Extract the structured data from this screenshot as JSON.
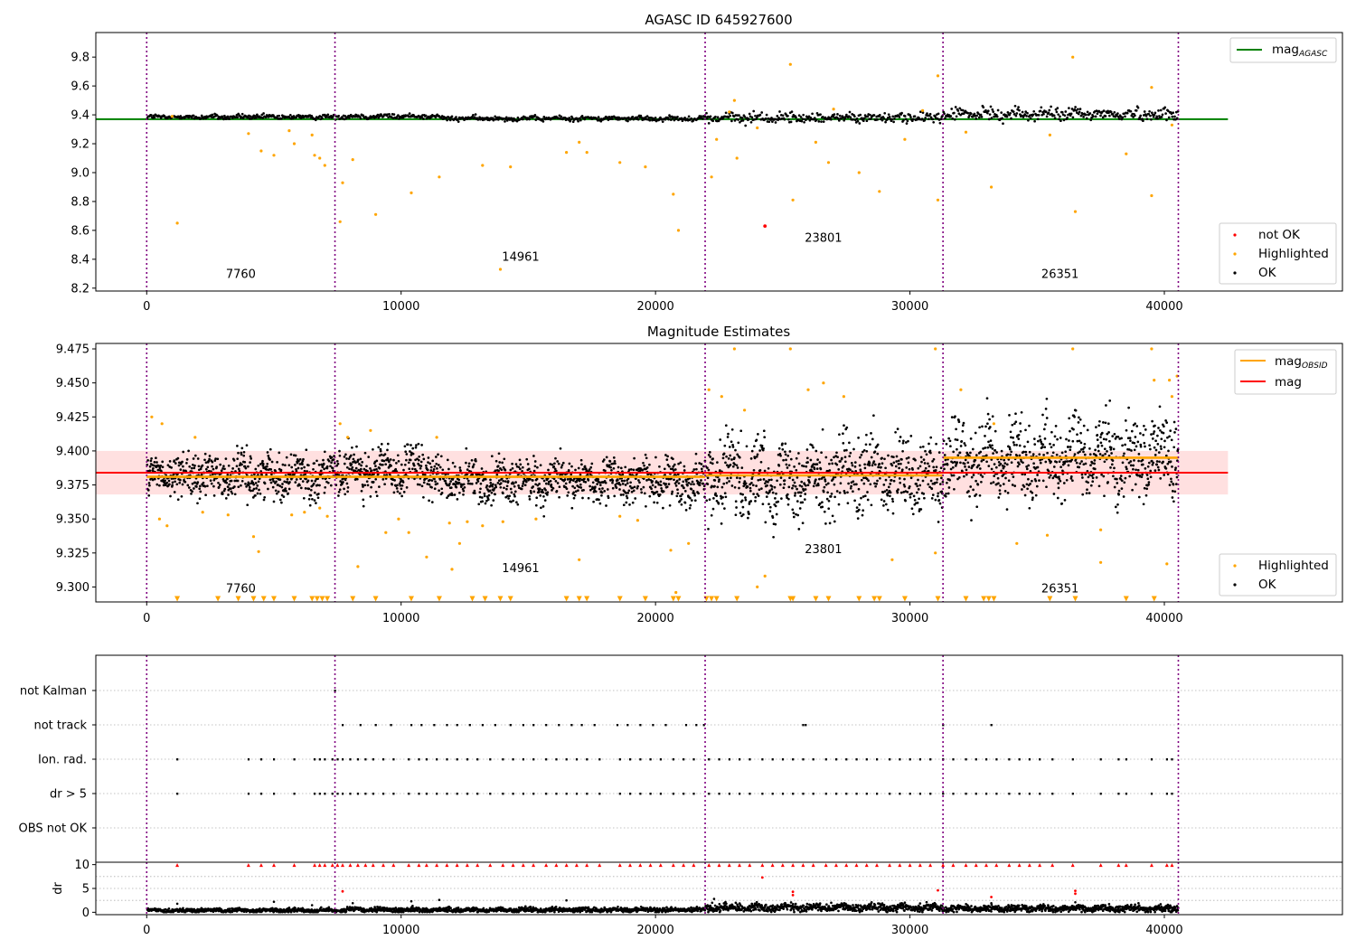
{
  "chart_data": [
    {
      "type": "scatter",
      "title": "AGASC ID 645927600",
      "xlim": [
        -2000,
        47000
      ],
      "ylim": [
        8.18,
        9.97
      ],
      "xticks": [
        0,
        10000,
        20000,
        30000,
        40000
      ],
      "yticks": [
        8.2,
        8.4,
        8.6,
        8.8,
        9.0,
        9.2,
        9.4,
        9.6,
        9.8
      ],
      "ytick_labels": [
        "8.2",
        "8.4",
        "8.6",
        "8.8",
        "9.0",
        "9.2",
        "9.4",
        "9.6",
        "9.8"
      ],
      "vlines": [
        0,
        7400,
        21950,
        31300,
        40550
      ],
      "reference_lines": [
        {
          "name": "mag_AGASC",
          "label_main": "mag",
          "label_sub": "AGASC",
          "y": 9.37,
          "x": [
            -2000,
            42500
          ],
          "color": "#008000"
        }
      ],
      "obsid_labels": [
        {
          "text": "7760",
          "x": 3700,
          "y": 8.27
        },
        {
          "text": "14961",
          "x": 14700,
          "y": 8.39
        },
        {
          "text": "23801",
          "x": 26600,
          "y": 8.52
        },
        {
          "text": "26351",
          "x": 35900,
          "y": 8.27
        }
      ],
      "ok_segments": [
        {
          "x": [
            0,
            7400
          ],
          "center": 9.385,
          "spread": 0.012
        },
        {
          "x": [
            7400,
            11500
          ],
          "center": 9.39,
          "spread": 0.012
        },
        {
          "x": [
            11500,
            21950
          ],
          "center": 9.375,
          "spread": 0.012
        },
        {
          "x": [
            21950,
            31300
          ],
          "center": 9.38,
          "spread": 0.025
        },
        {
          "x": [
            31300,
            40550
          ],
          "center": 9.405,
          "spread": 0.03
        }
      ],
      "highlighted": [
        [
          1200,
          8.65
        ],
        [
          4000,
          9.27
        ],
        [
          4500,
          9.15
        ],
        [
          5000,
          9.12
        ],
        [
          5800,
          9.2
        ],
        [
          5600,
          9.29
        ],
        [
          6500,
          9.26
        ],
        [
          6800,
          9.1
        ],
        [
          6600,
          9.12
        ],
        [
          7000,
          9.05
        ],
        [
          7600,
          8.66
        ],
        [
          7700,
          8.93
        ],
        [
          8100,
          9.09
        ],
        [
          9000,
          8.71
        ],
        [
          10400,
          8.86
        ],
        [
          11500,
          8.97
        ],
        [
          13200,
          9.05
        ],
        [
          13900,
          8.33
        ],
        [
          14300,
          9.04
        ],
        [
          16500,
          9.14
        ],
        [
          17000,
          9.21
        ],
        [
          17300,
          9.14
        ],
        [
          18600,
          9.07
        ],
        [
          19600,
          9.04
        ],
        [
          20700,
          8.85
        ],
        [
          20900,
          8.6
        ],
        [
          22200,
          8.97
        ],
        [
          22400,
          9.23
        ],
        [
          23200,
          9.1
        ],
        [
          23100,
          9.5
        ],
        [
          25300,
          9.75
        ],
        [
          25400,
          8.81
        ],
        [
          26300,
          9.21
        ],
        [
          26800,
          9.07
        ],
        [
          28000,
          9.0
        ],
        [
          28800,
          8.87
        ],
        [
          29800,
          9.23
        ],
        [
          31100,
          8.81
        ],
        [
          31100,
          9.67
        ],
        [
          32200,
          9.28
        ],
        [
          33200,
          8.9
        ],
        [
          35500,
          9.26
        ],
        [
          36400,
          9.8
        ],
        [
          36500,
          8.73
        ],
        [
          38500,
          9.13
        ],
        [
          39500,
          8.84
        ],
        [
          39500,
          9.59
        ],
        [
          40300,
          9.33
        ],
        [
          1000,
          9.39
        ],
        [
          22900,
          9.42
        ],
        [
          24000,
          9.31
        ],
        [
          27000,
          9.44
        ],
        [
          30500,
          9.43
        ]
      ],
      "not_ok": [
        [
          24300,
          8.63
        ]
      ],
      "legend_top": [
        "mag_AGASC"
      ],
      "legend_bottom": [
        "not OK",
        "Highlighted",
        "OK"
      ]
    },
    {
      "type": "scatter",
      "title": "Magnitude Estimates",
      "xlim": [
        -2000,
        47000
      ],
      "ylim": [
        9.289,
        9.479
      ],
      "xticks": [
        0,
        10000,
        20000,
        30000,
        40000
      ],
      "yticks": [
        9.3,
        9.325,
        9.35,
        9.375,
        9.4,
        9.425,
        9.45,
        9.475
      ],
      "ytick_labels": [
        "9.300",
        "9.325",
        "9.350",
        "9.375",
        "9.400",
        "9.425",
        "9.450",
        "9.475"
      ],
      "vlines": [
        0,
        7400,
        21950,
        31300,
        40550
      ],
      "mag": {
        "y": 9.384,
        "band": [
          9.368,
          9.4
        ],
        "x": [
          -2000,
          42500
        ],
        "color": "#ff0000"
      },
      "mag_obsid": [
        {
          "x": [
            0,
            7400
          ],
          "y": 9.381
        },
        {
          "x": [
            7400,
            21950
          ],
          "y": 9.381
        },
        {
          "x": [
            21950,
            31300
          ],
          "y": 9.382
        },
        {
          "x": [
            31300,
            40550
          ],
          "y": 9.395
        }
      ],
      "obsid_labels": [
        {
          "text": "7760",
          "x": 3700,
          "y": 9.296
        },
        {
          "text": "14961",
          "x": 14700,
          "y": 9.311
        },
        {
          "text": "23801",
          "x": 26600,
          "y": 9.325
        },
        {
          "text": "26351",
          "x": 35900,
          "y": 9.296
        }
      ],
      "ok_segments": [
        {
          "x": [
            0,
            7400
          ],
          "center": 9.382,
          "spread": 0.011
        },
        {
          "x": [
            7400,
            11500
          ],
          "center": 9.385,
          "spread": 0.012
        },
        {
          "x": [
            11500,
            21950
          ],
          "center": 9.378,
          "spread": 0.011
        },
        {
          "x": [
            21950,
            31300
          ],
          "center": 9.381,
          "spread": 0.02
        },
        {
          "x": [
            31300,
            40550
          ],
          "center": 9.395,
          "spread": 0.021
        }
      ],
      "highlighted": [
        [
          200,
          9.425
        ],
        [
          600,
          9.42
        ],
        [
          500,
          9.35
        ],
        [
          800,
          9.345
        ],
        [
          1900,
          9.41
        ],
        [
          4200,
          9.337
        ],
        [
          4400,
          9.326
        ],
        [
          7600,
          9.42
        ],
        [
          7900,
          9.41
        ],
        [
          8300,
          9.315
        ],
        [
          8800,
          9.415
        ],
        [
          9400,
          9.34
        ],
        [
          10300,
          9.34
        ],
        [
          11000,
          9.322
        ],
        [
          11400,
          9.41
        ],
        [
          12000,
          9.313
        ],
        [
          12300,
          9.332
        ],
        [
          12600,
          9.348
        ],
        [
          13200,
          9.345
        ],
        [
          17000,
          9.32
        ],
        [
          20600,
          9.327
        ],
        [
          20800,
          9.296
        ],
        [
          22100,
          9.445
        ],
        [
          22600,
          9.44
        ],
        [
          23100,
          9.475
        ],
        [
          23500,
          9.43
        ],
        [
          24000,
          9.3
        ],
        [
          24300,
          9.308
        ],
        [
          25300,
          9.475
        ],
        [
          26000,
          9.445
        ],
        [
          26600,
          9.45
        ],
        [
          27400,
          9.44
        ],
        [
          29300,
          9.32
        ],
        [
          31000,
          9.475
        ],
        [
          31000,
          9.325
        ],
        [
          32000,
          9.445
        ],
        [
          33300,
          9.42
        ],
        [
          34200,
          9.332
        ],
        [
          35400,
          9.338
        ],
        [
          36400,
          9.475
        ],
        [
          37500,
          9.318
        ],
        [
          37500,
          9.342
        ],
        [
          39500,
          9.475
        ],
        [
          40200,
          9.452
        ],
        [
          40300,
          9.44
        ],
        [
          40500,
          9.455
        ],
        [
          40100,
          9.317
        ],
        [
          39600,
          9.452
        ],
        [
          5700,
          9.353
        ],
        [
          6200,
          9.355
        ],
        [
          6800,
          9.358
        ],
        [
          7100,
          9.352
        ],
        [
          9900,
          9.35
        ],
        [
          11900,
          9.347
        ],
        [
          14000,
          9.348
        ],
        [
          15300,
          9.35
        ],
        [
          18600,
          9.352
        ],
        [
          19300,
          9.349
        ],
        [
          21300,
          9.332
        ],
        [
          2200,
          9.355
        ],
        [
          3200,
          9.353
        ]
      ],
      "clipped_low_x": [
        1200,
        2800,
        3600,
        4200,
        4600,
        5000,
        5800,
        6500,
        6700,
        6900,
        7100,
        8100,
        9000,
        10400,
        11500,
        12800,
        13300,
        13900,
        14300,
        16500,
        17000,
        17300,
        18600,
        19600,
        20700,
        20900,
        22000,
        22200,
        22400,
        23200,
        25300,
        25400,
        26300,
        26800,
        28000,
        28600,
        28800,
        29800,
        31100,
        32200,
        32900,
        33100,
        33300,
        35500,
        36500,
        38500,
        39600
      ],
      "legend_top": [
        "mag_OBSID",
        "mag"
      ],
      "legend_bottom": [
        "Highlighted",
        "OK"
      ]
    },
    {
      "type": "scatter",
      "xlim": [
        -2000,
        47000
      ],
      "xticks": [
        0,
        10000,
        20000,
        30000,
        40000
      ],
      "vlines": [
        0,
        7400,
        21950,
        31300,
        40550
      ],
      "flag_categories": [
        "not Kalman",
        "not track",
        "Ion. rad.",
        "dr > 5",
        "OBS not OK"
      ],
      "flags": {
        "not Kalman": [
          7400
        ],
        "not track": [
          7700,
          8400,
          9000,
          9600,
          10400,
          10800,
          11300,
          11800,
          12200,
          12700,
          13200,
          13700,
          14300,
          14800,
          15200,
          15700,
          16200,
          16700,
          17100,
          17600,
          18500,
          18900,
          19400,
          19900,
          20400,
          21200,
          21600,
          21900,
          25800,
          25900,
          31300,
          33200
        ],
        "Ion. rad.": [
          1200,
          4000,
          4500,
          5000,
          5800,
          6600,
          6800,
          7000,
          7300,
          7500,
          7700,
          8000,
          8300,
          8600,
          8900,
          9300,
          9700,
          10300,
          10700,
          11000,
          11400,
          11800,
          12200,
          12600,
          13000,
          13500,
          14000,
          14400,
          14800,
          15200,
          15700,
          16100,
          16500,
          16900,
          17300,
          17800,
          18600,
          19000,
          19400,
          19800,
          20200,
          20700,
          21100,
          21500,
          22100,
          22500,
          22900,
          23300,
          23700,
          24200,
          24600,
          25000,
          25400,
          25800,
          26200,
          26700,
          27100,
          27500,
          27900,
          28300,
          28700,
          29200,
          29600,
          30000,
          30400,
          30800,
          31300,
          31700,
          32200,
          32600,
          33000,
          33400,
          33900,
          34300,
          34700,
          35100,
          35600,
          36400,
          37500,
          38200,
          38500,
          39500,
          40100,
          40300
        ],
        "dr > 5": [
          1200,
          4000,
          4500,
          5000,
          5800,
          6600,
          6800,
          7000,
          7300,
          7500,
          7700,
          8000,
          8300,
          8600,
          8900,
          9300,
          9700,
          10300,
          10700,
          11000,
          11400,
          11800,
          12200,
          12600,
          13000,
          13500,
          14000,
          14400,
          14800,
          15200,
          15700,
          16100,
          16500,
          16900,
          17300,
          17800,
          18600,
          19000,
          19400,
          19800,
          20200,
          20700,
          21100,
          21500,
          22100,
          22500,
          22900,
          23300,
          23700,
          24200,
          24600,
          25000,
          25400,
          25800,
          26200,
          26700,
          27100,
          27500,
          27900,
          28300,
          28700,
          29200,
          29600,
          30000,
          30400,
          30800,
          31300,
          31700,
          32200,
          32600,
          33000,
          33400,
          33900,
          34300,
          34700,
          35100,
          35600,
          36400,
          37500,
          38200,
          38500,
          39500,
          40100,
          40300
        ],
        "OBS not OK": []
      }
    },
    {
      "type": "scatter",
      "ylabel": "dr",
      "xlim": [
        -2000,
        47000
      ],
      "ylim": [
        -0.5,
        10.5
      ],
      "xticks": [
        0,
        10000,
        20000,
        30000,
        40000
      ],
      "yticks": [
        0,
        5,
        10
      ],
      "ytick_labels": [
        "0",
        "5",
        "10"
      ],
      "vlines": [
        0,
        7400,
        21950,
        31300,
        40550
      ],
      "ok_segments": [
        {
          "x": [
            0,
            7400
          ],
          "center": 0.4,
          "spread": 0.3
        },
        {
          "x": [
            7400,
            21950
          ],
          "center": 0.5,
          "spread": 0.35
        },
        {
          "x": [
            21950,
            31300
          ],
          "center": 1.0,
          "spread": 0.6
        },
        {
          "x": [
            31300,
            40550
          ],
          "center": 0.8,
          "spread": 0.5
        }
      ],
      "ok_outliers": [
        [
          1200,
          1.8
        ],
        [
          5000,
          2.2
        ],
        [
          6500,
          1.5
        ],
        [
          8100,
          1.9
        ],
        [
          10400,
          2.3
        ],
        [
          11500,
          2.6
        ],
        [
          16500,
          2.5
        ],
        [
          22300,
          2.8
        ],
        [
          33200,
          1.9
        ],
        [
          36500,
          2.1
        ]
      ],
      "red_capped_x": [
        1200,
        4000,
        4500,
        5000,
        5800,
        6600,
        6800,
        7000,
        7300,
        7500,
        7700,
        8000,
        8300,
        8600,
        8900,
        9300,
        9700,
        10300,
        10700,
        11000,
        11400,
        11800,
        12200,
        12600,
        13000,
        13500,
        14000,
        14400,
        14800,
        15200,
        15700,
        16100,
        16500,
        16900,
        17300,
        17800,
        18600,
        19000,
        19400,
        19800,
        20200,
        20700,
        21100,
        21500,
        22100,
        22500,
        22900,
        23300,
        23700,
        24200,
        24600,
        25000,
        25400,
        25800,
        26200,
        26700,
        27100,
        27500,
        27900,
        28300,
        28700,
        29200,
        29600,
        30000,
        30400,
        30800,
        31300,
        31700,
        32200,
        32600,
        33000,
        33400,
        33900,
        34300,
        34700,
        35100,
        35600,
        36400,
        37500,
        38200,
        38500,
        39500,
        40100,
        40300
      ],
      "red_points": [
        [
          24200,
          7.3
        ],
        [
          25400,
          4.3
        ],
        [
          25400,
          3.6
        ],
        [
          31100,
          4.6
        ],
        [
          33200,
          3.2
        ],
        [
          36500,
          4.5
        ],
        [
          36500,
          3.9
        ],
        [
          7700,
          4.4
        ]
      ]
    }
  ],
  "legend": {
    "mag_agasc_main": "mag",
    "mag_agasc_sub": "AGASC",
    "mag_obsid_main": "mag",
    "mag_obsid_sub": "OBSID",
    "mag": "mag",
    "not_ok": "not OK",
    "highlighted": "Highlighted",
    "ok": "OK"
  },
  "colors": {
    "ok": "#000000",
    "highlighted": "#ffa500",
    "not_ok": "#ff0000",
    "mag_agasc": "#008000",
    "mag_obsid": "#ffa500",
    "mag": "#ff0000",
    "mag_band": "#ff0000",
    "vline": "#800080"
  }
}
